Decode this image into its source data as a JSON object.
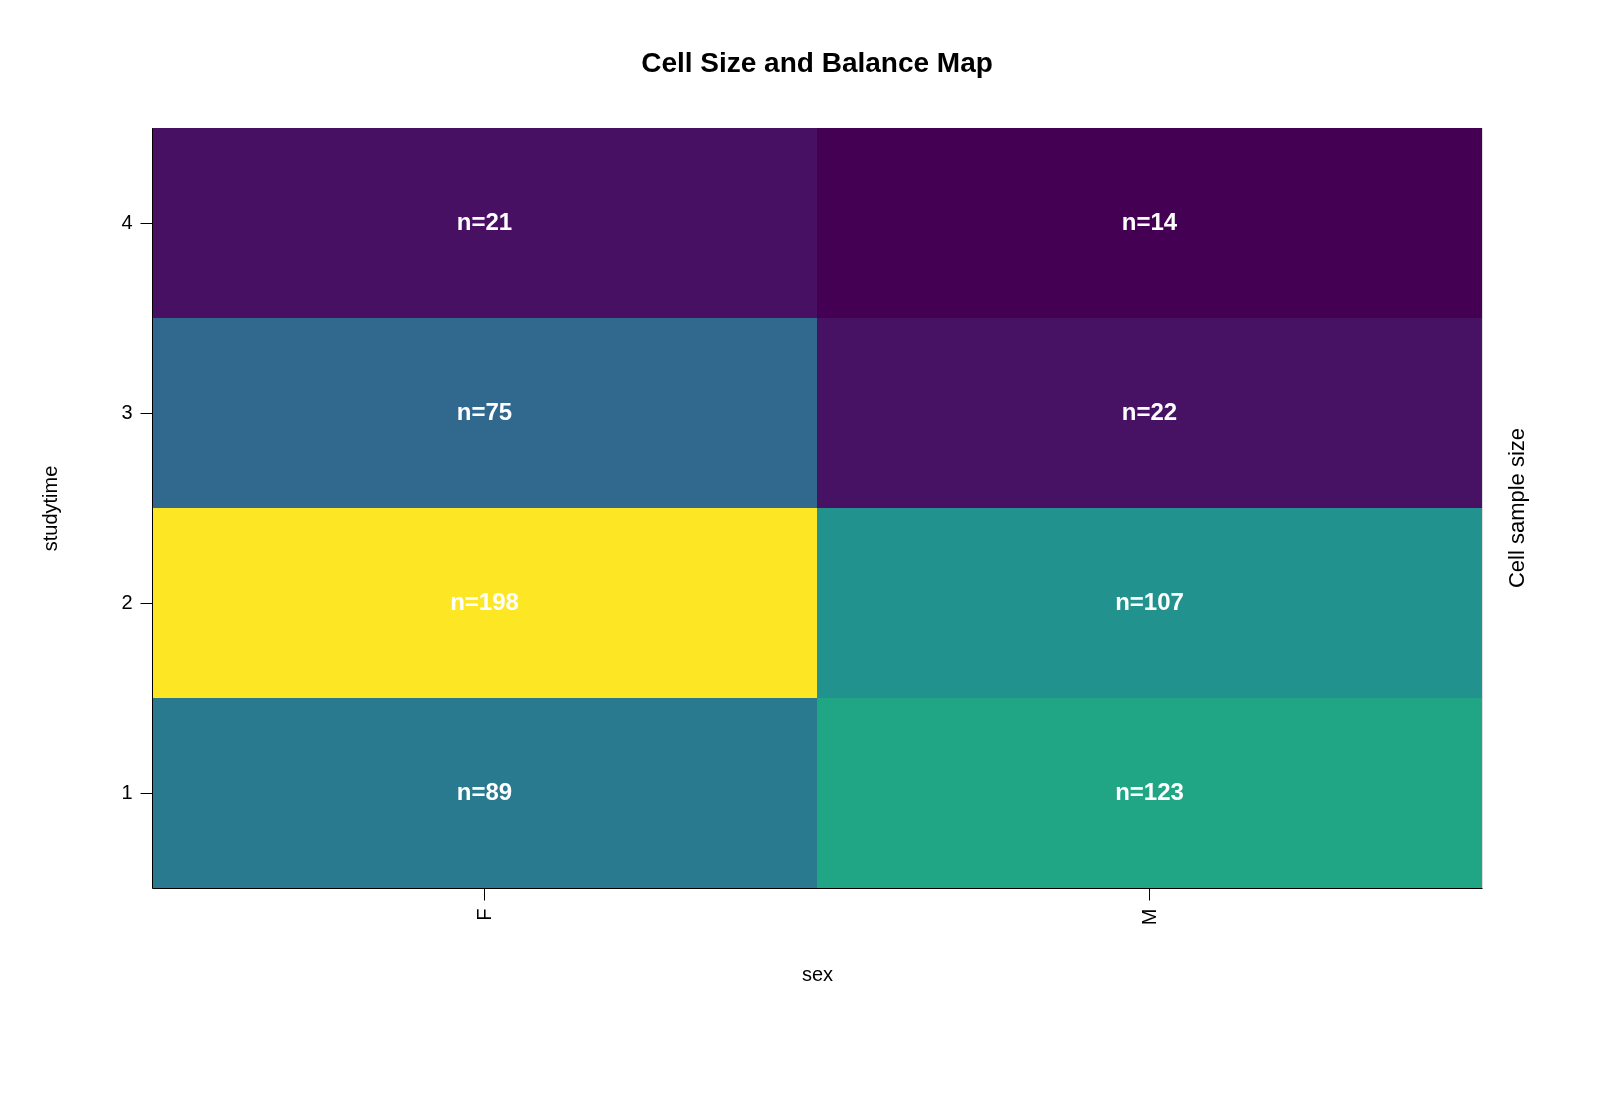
{
  "chart_data": {
    "type": "heatmap",
    "title": "Cell Size and Balance Map",
    "xlabel": "sex",
    "ylabel": "studytime",
    "clabel": "Cell sample size",
    "categories": [
      "F",
      "M"
    ],
    "y_categories": [
      "4",
      "3",
      "2",
      "1"
    ],
    "cells": [
      [
        21,
        14
      ],
      [
        75,
        22
      ],
      [
        198,
        107
      ],
      [
        89,
        123
      ]
    ],
    "cell_labels": [
      [
        "n=21",
        "n=14"
      ],
      [
        "n=75",
        "n=22"
      ],
      [
        "n=198",
        "n=107"
      ],
      [
        "n=89",
        "n=123"
      ]
    ],
    "legend": false
  }
}
